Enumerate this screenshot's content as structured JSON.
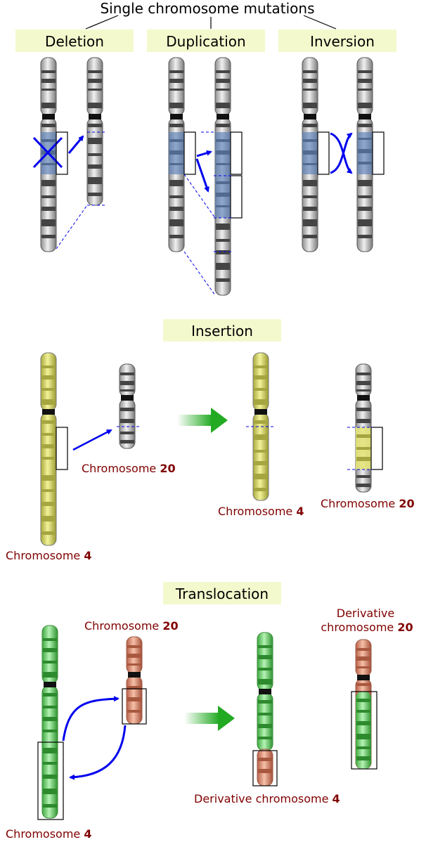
{
  "title": "Single chromosome mutations",
  "sections": {
    "deletion": "Deletion",
    "duplication": "Duplication",
    "inversion": "Inversion",
    "insertion": "Insertion",
    "translocation": "Translocation"
  },
  "insertion_labels": {
    "chr20_src_a": "Chromosome ",
    "chr20_src_b": "20",
    "chr4_src_a": "Chromosome ",
    "chr4_src_b": "4",
    "chr4_res_a": "Chromosome ",
    "chr4_res_b": "4",
    "chr20_res_a": "Chromosome ",
    "chr20_res_b": "20"
  },
  "translocation_labels": {
    "chr20_src_a": "Chromosome ",
    "chr20_src_b": "20",
    "chr4_src_a": "Chromosome ",
    "chr4_src_b": "4",
    "der20_line1": "Derivative",
    "der20_line2a": "chromosome ",
    "der20_line2b": "20",
    "der4_a": "Derivative chromosome ",
    "der4_b": "4"
  },
  "colors": {
    "label_bg": "#f4f9cd",
    "label_text": "#800000",
    "arrow_blue": "#0000ee",
    "highlight_blue": "#5a7fb8",
    "chr_gray": "#c8c8c8",
    "chr_yellow": "#e4e47a",
    "chr_green": "#7fdc7f",
    "chr_orange": "#e89878",
    "arrow_green": "#22aa22"
  }
}
